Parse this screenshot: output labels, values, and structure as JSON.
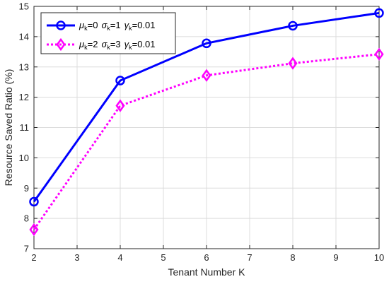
{
  "chart_data": {
    "type": "line",
    "xlabel": "Tenant Number K",
    "ylabel": "Resource Saved Ratio (%)",
    "xlim": [
      2,
      10
    ],
    "ylim": [
      7,
      15
    ],
    "x_ticks": [
      "2",
      "3",
      "4",
      "5",
      "6",
      "7",
      "8",
      "9",
      "10"
    ],
    "y_ticks": [
      "7",
      "8",
      "9",
      "10",
      "11",
      "12",
      "13",
      "14",
      "15"
    ],
    "grid": true,
    "legend_position": "top-left",
    "series": [
      {
        "legend": {
          "mu_sym": "μ",
          "mu_sub": "k",
          "mu_val": "=0",
          "sigma_sym": "σ",
          "sigma_sub": "k",
          "sigma_val": "=1",
          "gamma_sym": "γ",
          "gamma_sub": "k",
          "gamma_val": "=0.01"
        },
        "color": "#0000ff",
        "line_style": "solid",
        "marker": "circle",
        "x": [
          2,
          4,
          6,
          8,
          10
        ],
        "y": [
          8.55,
          12.55,
          13.78,
          14.36,
          14.78
        ]
      },
      {
        "legend": {
          "mu_sym": "μ",
          "mu_sub": "k",
          "mu_val": "=2",
          "sigma_sym": "σ",
          "sigma_sub": "k",
          "sigma_val": "=3",
          "gamma_sym": "γ",
          "gamma_sub": "k",
          "gamma_val": "=0.01"
        },
        "color": "#ff00ff",
        "line_style": "dotted",
        "marker": "diamond",
        "x": [
          2,
          4,
          6,
          8,
          10
        ],
        "y": [
          7.63,
          11.72,
          12.72,
          13.12,
          13.42
        ]
      }
    ]
  }
}
